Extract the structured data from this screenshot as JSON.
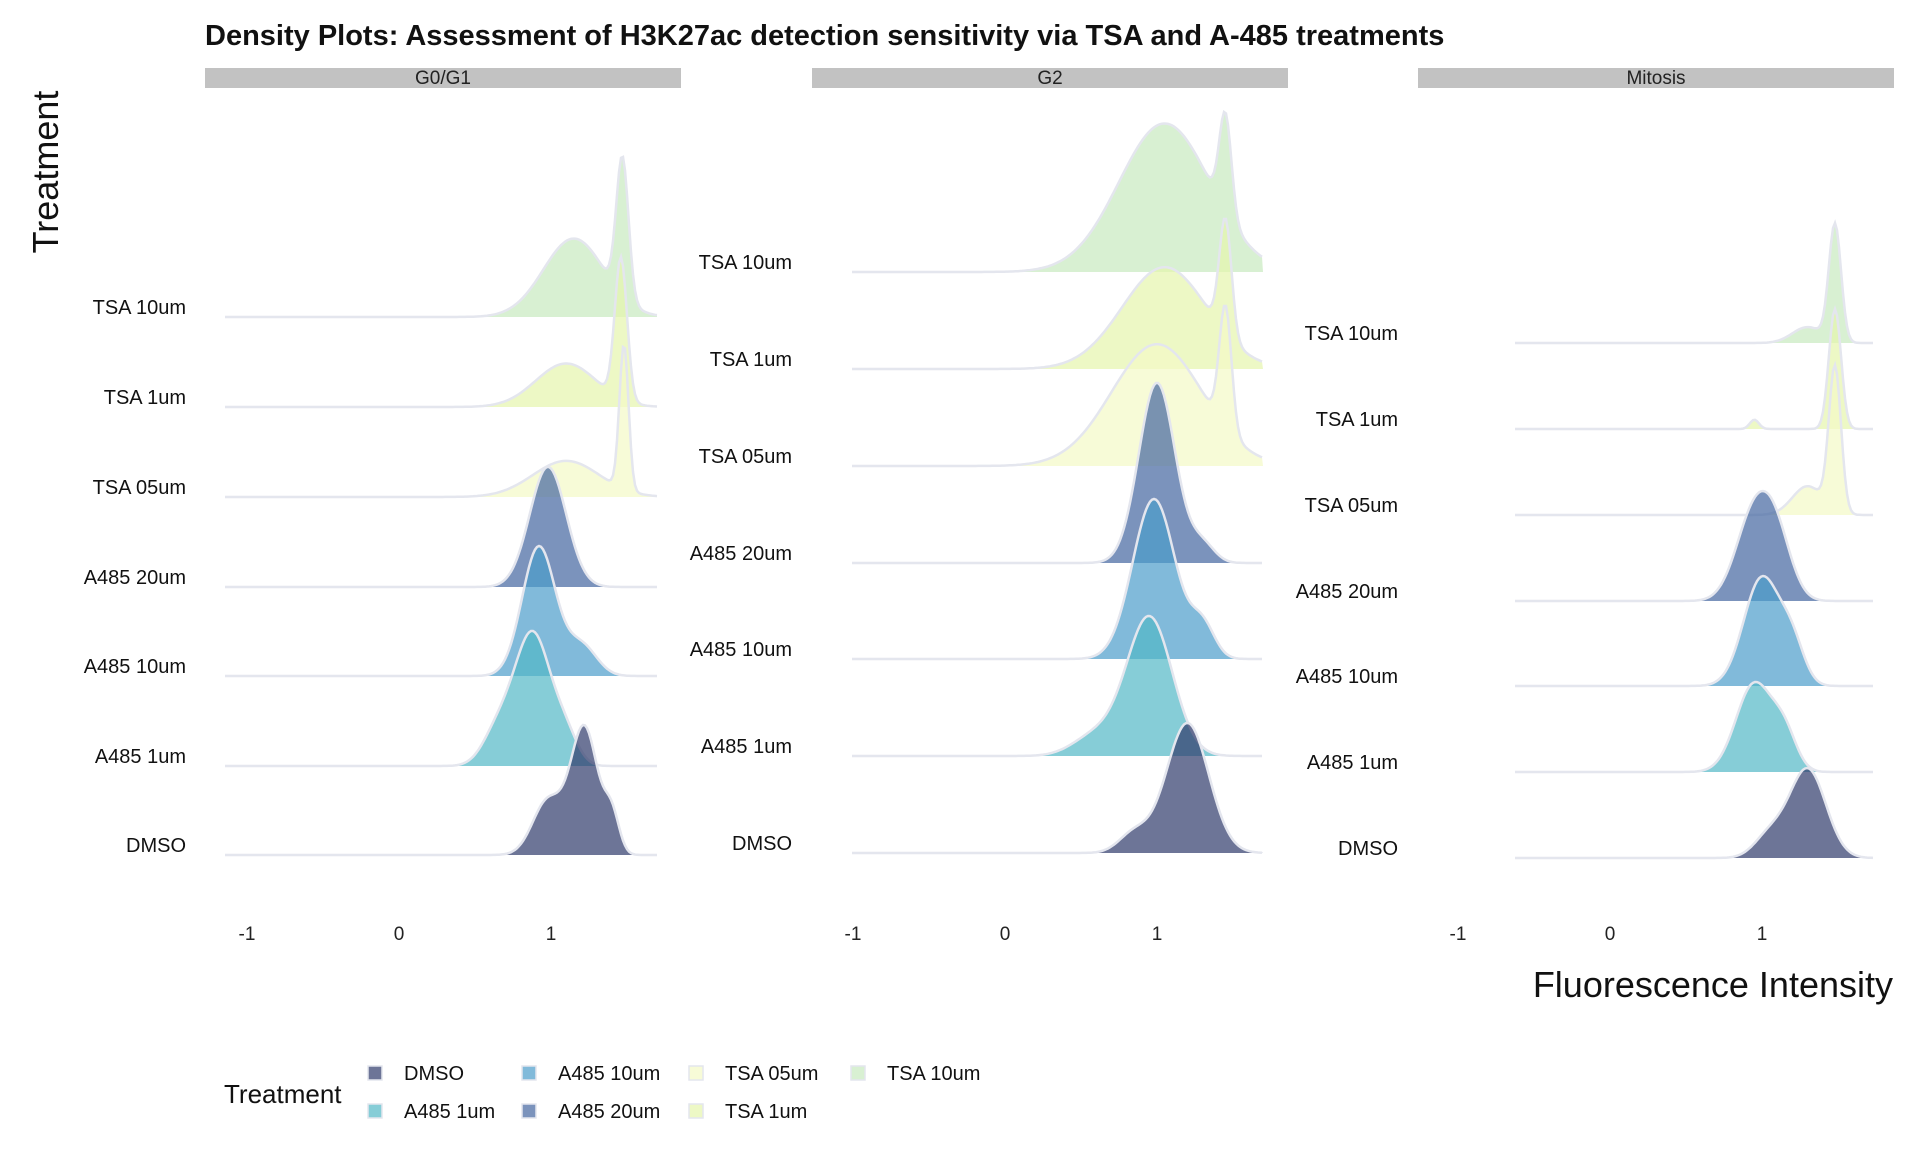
{
  "chart_data": {
    "type": "ridgeline",
    "title": "Density Plots: Assessment of H3K27ac detection sensitivity via TSA and A-485 treatments",
    "xlabel": "Fluorescence Intensity",
    "ylabel": "Treatment",
    "xlim": [
      -1.2,
      1.75
    ],
    "x_ticks": [
      "-1",
      "0",
      "1"
    ],
    "x_tick_values": [
      -1,
      0,
      1
    ],
    "categories": [
      "DMSO",
      "A485 1um",
      "A485 10um",
      "A485 20um",
      "TSA 05um",
      "TSA 1um",
      "TSA 10um"
    ],
    "colors": {
      "DMSO": "#2f3b6b",
      "A485 1um": "#53b8c6",
      "A485 10um": "#4b9ccb",
      "A485 20um": "#43659f",
      "TSA 05um": "#f4fac6",
      "TSA 1um": "#e6f5ac",
      "TSA 10um": "#c8eabf"
    },
    "fill_opacity": 0.7,
    "outline_color": "#e4e6ee",
    "legend": {
      "title": "Treatment",
      "position": "bottom",
      "items": [
        "DMSO",
        "A485 1um",
        "A485 10um",
        "A485 20um",
        "TSA 05um",
        "TSA 1um",
        "TSA 10um"
      ]
    },
    "facets": [
      {
        "label": "G0/G1",
        "series": [
          {
            "name": "DMSO",
            "peaks": [
              [
                1.22,
                0.09,
                0.7
              ],
              [
                0.98,
                0.1,
                0.3
              ],
              [
                1.4,
                0.05,
                0.2
              ]
            ]
          },
          {
            "name": "A485 1um",
            "peaks": [
              [
                0.88,
                0.12,
                0.8
              ],
              [
                0.65,
                0.1,
                0.2
              ],
              [
                1.1,
                0.08,
                0.15
              ]
            ]
          },
          {
            "name": "A485 10um",
            "peaks": [
              [
                0.92,
                0.11,
                0.85
              ],
              [
                1.2,
                0.1,
                0.2
              ]
            ]
          },
          {
            "name": "A485 20um",
            "peaks": [
              [
                0.98,
                0.12,
                1.0
              ]
            ]
          },
          {
            "name": "TSA 05um",
            "peaks": [
              [
                1.48,
                0.03,
                1.0
              ],
              [
                1.1,
                0.22,
                0.25
              ]
            ]
          },
          {
            "name": "TSA 1um",
            "peaks": [
              [
                1.46,
                0.04,
                1.3
              ],
              [
                1.1,
                0.2,
                0.4
              ]
            ]
          },
          {
            "name": "TSA 10um",
            "peaks": [
              [
                1.47,
                0.04,
                1.6
              ],
              [
                1.15,
                0.2,
                0.9
              ]
            ]
          }
        ]
      },
      {
        "label": "G2",
        "series": [
          {
            "name": "DMSO",
            "peaks": [
              [
                1.2,
                0.14,
                1.0
              ],
              [
                0.85,
                0.1,
                0.15
              ]
            ]
          },
          {
            "name": "A485 1um",
            "peaks": [
              [
                0.95,
                0.15,
                1.0
              ],
              [
                0.6,
                0.15,
                0.15
              ]
            ]
          },
          {
            "name": "A485 10um",
            "peaks": [
              [
                0.98,
                0.14,
                1.0
              ],
              [
                1.3,
                0.08,
                0.2
              ]
            ]
          },
          {
            "name": "A485 20um",
            "peaks": [
              [
                1.0,
                0.12,
                1.0
              ],
              [
                1.3,
                0.08,
                0.1
              ]
            ]
          },
          {
            "name": "TSA 05um",
            "peaks": [
              [
                1.0,
                0.3,
                0.35
              ],
              [
                1.45,
                0.04,
                0.35
              ]
            ]
          },
          {
            "name": "TSA 1um",
            "peaks": [
              [
                1.05,
                0.28,
                0.4
              ],
              [
                1.45,
                0.04,
                0.45
              ]
            ]
          },
          {
            "name": "TSA 10um",
            "peaks": [
              [
                1.05,
                0.3,
                0.6
              ],
              [
                1.45,
                0.04,
                0.4
              ]
            ]
          }
        ]
      },
      {
        "label": "Mitosis",
        "series": [
          {
            "name": "DMSO",
            "peaks": [
              [
                1.3,
                0.12,
                0.8
              ],
              [
                1.05,
                0.1,
                0.2
              ]
            ]
          },
          {
            "name": "A485 1um",
            "peaks": [
              [
                0.95,
                0.12,
                0.8
              ],
              [
                1.15,
                0.08,
                0.3
              ]
            ]
          },
          {
            "name": "A485 10um",
            "peaks": [
              [
                1.0,
                0.12,
                0.9
              ],
              [
                1.2,
                0.08,
                0.3
              ]
            ]
          },
          {
            "name": "A485 20um",
            "peaks": [
              [
                0.95,
                0.12,
                0.7
              ],
              [
                1.1,
                0.1,
                0.4
              ]
            ]
          },
          {
            "name": "TSA 05um",
            "peaks": [
              [
                1.48,
                0.04,
                1.0
              ],
              [
                1.3,
                0.1,
                0.2
              ]
            ]
          },
          {
            "name": "TSA 1um",
            "peaks": [
              [
                1.48,
                0.04,
                1.3
              ],
              [
                0.95,
                0.03,
                0.1
              ]
            ]
          },
          {
            "name": "TSA 10um",
            "peaks": [
              [
                1.48,
                0.04,
                2.2
              ],
              [
                1.3,
                0.1,
                0.3
              ]
            ]
          }
        ]
      }
    ]
  }
}
